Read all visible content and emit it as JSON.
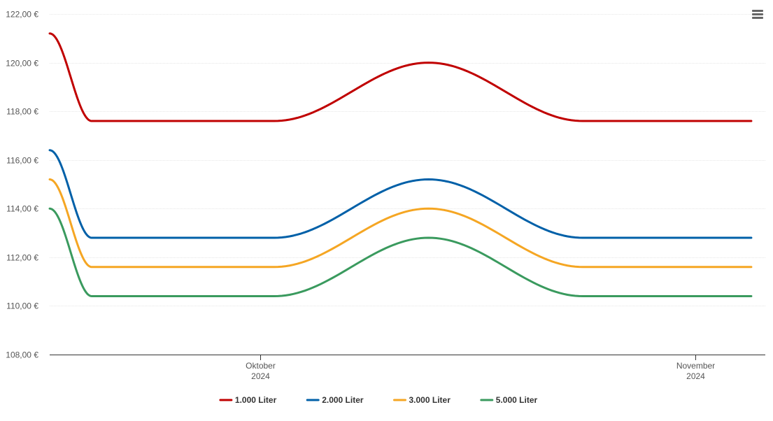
{
  "menu": {
    "icon": "hamburger-menu-icon"
  },
  "chart_data": {
    "type": "line",
    "x": [
      "2024-09-16",
      "2024-09-19",
      "2024-10-02",
      "2024-10-13",
      "2024-10-24",
      "2024-11-05"
    ],
    "series": [
      {
        "name": "1.000 Liter",
        "color": "#c00000",
        "values": [
          121.2,
          117.6,
          117.6,
          120.0,
          117.6,
          117.6
        ]
      },
      {
        "name": "2.000 Liter",
        "color": "#0060a8",
        "values": [
          116.4,
          112.8,
          112.8,
          115.2,
          112.8,
          112.8
        ]
      },
      {
        "name": "3.000 Liter",
        "color": "#f5a623",
        "values": [
          115.2,
          111.6,
          111.6,
          114.0,
          111.6,
          111.6
        ]
      },
      {
        "name": "5.000 Liter",
        "color": "#3a9a5e",
        "values": [
          114.0,
          110.4,
          110.4,
          112.8,
          110.4,
          110.4
        ]
      }
    ],
    "ylim": [
      108,
      122
    ],
    "yticks": [
      108,
      110,
      112,
      114,
      116,
      118,
      120,
      122
    ],
    "ytick_labels": [
      "108,00 €",
      "110,00 €",
      "112,00 €",
      "114,00 €",
      "116,00 €",
      "118,00 €",
      "120,00 €",
      "122,00 €"
    ],
    "xlim": [
      "2024-09-16",
      "2024-11-06"
    ],
    "xticks": [
      {
        "date": "2024-10-01",
        "month": "Oktober",
        "year": "2024"
      },
      {
        "date": "2024-11-01",
        "month": "November",
        "year": "2024"
      }
    ],
    "grid": true,
    "legend": "bottom-center"
  }
}
